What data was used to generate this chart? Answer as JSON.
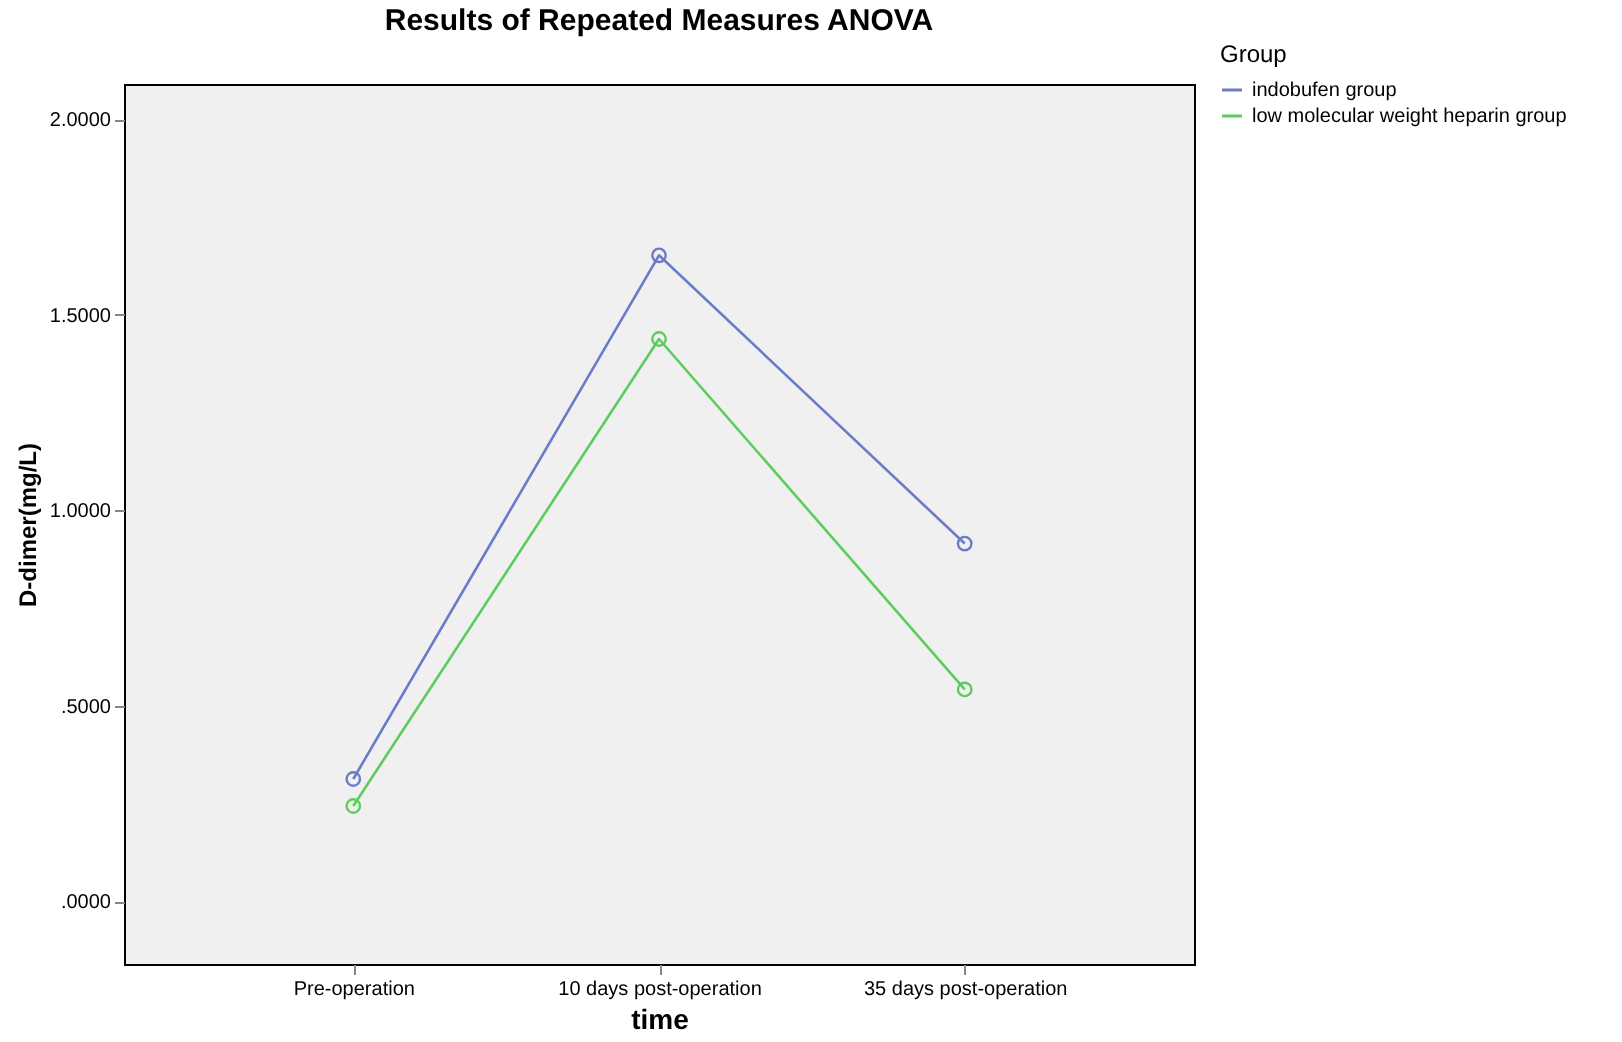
{
  "chart_data": {
    "type": "line",
    "title": "Results of Repeated Measures ANOVA",
    "xlabel": "time",
    "ylabel": "D-dimer(mg/L)",
    "legend_title": "Group",
    "categories": [
      "Pre-operation",
      "10 days post-operation",
      "35 days post-operation"
    ],
    "series": [
      {
        "name": "indobufen group",
        "color": "#6a7bc8",
        "values": [
          0.313,
          1.652,
          0.915
        ]
      },
      {
        "name": "low molecular weight heparin group",
        "color": "#5ccc5c",
        "values": [
          0.244,
          1.438,
          0.542
        ]
      }
    ],
    "ylim": [
      -0.16,
      2.09
    ],
    "yticks": [
      {
        "value": 0,
        "label": ".0000"
      },
      {
        "value": 0.5,
        "label": ".5000"
      },
      {
        "value": 1,
        "label": "1.0000"
      },
      {
        "value": 1.5,
        "label": "1.5000"
      },
      {
        "value": 2,
        "label": "2.0000"
      }
    ],
    "grid": false,
    "legend": "top right",
    "marker": "circle",
    "line_style": "solid"
  }
}
